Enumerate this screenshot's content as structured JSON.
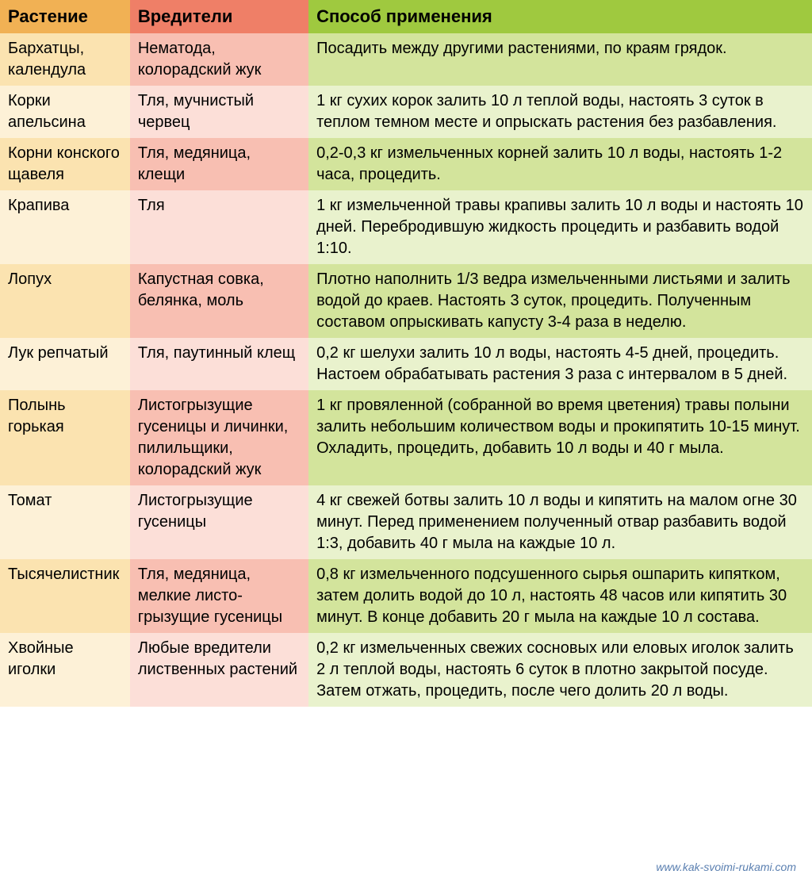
{
  "table": {
    "col_widths": [
      "16%",
      "22%",
      "62%"
    ],
    "header": {
      "cells": [
        "Растение",
        "Вредители",
        "Способ применения"
      ],
      "bg_colors": [
        "#f1b154",
        "#ef7f67",
        "#9fc93f"
      ],
      "font_size": 22,
      "font_weight": "bold"
    },
    "body_font_size": 20,
    "colors": {
      "col1_odd": "#fbe3b0",
      "col1_even": "#fdf1d7",
      "col2_odd": "#f8bfb2",
      "col2_even": "#fcdfd8",
      "col3_odd": "#d3e49c",
      "col3_even": "#e9f2cd"
    },
    "rows": [
      {
        "plant": "Бархатцы, календула",
        "pests": "Нематода, колорадский жук",
        "usage": "Посадить между другими растениями, по краям грядок."
      },
      {
        "plant": "Корки апельсина",
        "pests": "Тля, мучнистый червец",
        "usage": "1 кг сухих корок залить 10 л теплой воды, настоять 3 суток в теплом темном месте и опрыскать растения без разбавления."
      },
      {
        "plant": "Корни конского щавеля",
        "pests": "Тля, медяница, клещи",
        "usage": "0,2-0,3 кг измельченных корней залить 10 л воды, настоять 1-2 часа, процедить."
      },
      {
        "plant": "Крапива",
        "pests": "Тля",
        "usage": "1 кг измельченной травы крапивы залить 10 л воды и настоять 10 дней. Перебродившую жидкость процедить и разбавить водой 1:10."
      },
      {
        "plant": "Лопух",
        "pests": "Капустная совка, белянка, моль",
        "usage": "Плотно наполнить 1/3 ведра измельченными листьями и залить водой до краев. Настоять 3 суток, процедить. Полученным составом опрыскивать капусту 3-4 раза в неделю."
      },
      {
        "plant": "Лук репчатый",
        "pests": "Тля, паутинный клещ",
        "usage": "0,2 кг шелухи залить 10 л воды, настоять 4-5 дней, процедить. Настоем обрабатывать растения 3 раза с интервалом в 5 дней."
      },
      {
        "plant": "Полынь горькая",
        "pests": "Листогрызущие гусеницы и личинки, пилильщики, колорадский жук",
        "usage": "1 кг провяленной (собранной во время цветения) травы полыни залить небольшим количеством воды и прокипятить 10-15 минут. Охладить, процедить, добавить 10 л воды и 40 г мыла."
      },
      {
        "plant": "Томат",
        "pests": "Листогрызущие гусеницы",
        "usage": "4 кг свежей ботвы залить 10 л воды и кипятить на малом огне 30 минут. Перед применением полученный отвар разбавить водой 1:3, добавить 40 г мыла на каждые 10 л."
      },
      {
        "plant": "Тысяче­листник",
        "pests": "Тля, медяница, мелкие листо­грызущие гусеницы",
        "usage": "0,8 кг измельченного подсушенного сырья ошпарить кипятком, затем долить водой до 10 л, настоять 48 часов или кипятить 30 минут. В конце добавить 20 г мыла на каждые 10 л состава."
      },
      {
        "plant": "Хвойные иголки",
        "pests": "Любые вредители лиственных растений",
        "usage": "0,2 кг измельченных свежих сосновых или еловых иголок залить 2 л теплой воды, настоять 6 суток в плотно закрытой посуде. Затем отжать, процедить, после чего долить 20 л воды."
      }
    ]
  },
  "watermark": "www.kak-svoimi-rukami.com"
}
